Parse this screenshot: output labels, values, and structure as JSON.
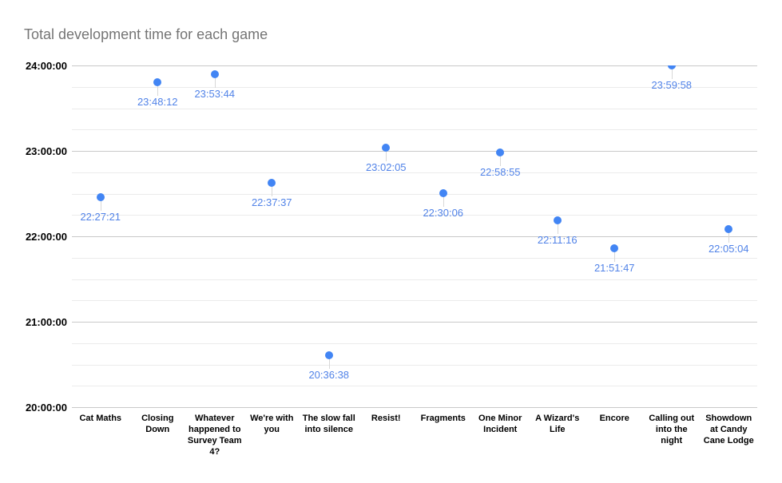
{
  "chart_data": {
    "type": "scatter",
    "title": "Total development time for each game",
    "categories": [
      "Cat Maths",
      "Closing Down",
      "Whatever happened to Survey Team 4?",
      "We're with you",
      "The slow fall into silence",
      "Resist!",
      "Fragments",
      "One Minor Incident",
      "A Wizard's Life",
      "Encore",
      "Calling out into the night",
      "Showdown at Candy Cane Lodge"
    ],
    "values": [
      "22:27:21",
      "23:48:12",
      "23:53:44",
      "22:37:37",
      "20:36:38",
      "23:02:05",
      "22:30:06",
      "22:58:55",
      "22:11:16",
      "21:51:47",
      "23:59:58",
      "22:05:04"
    ],
    "data_labels_visible": true,
    "xlabel": "",
    "ylabel": "",
    "ylim": [
      "20:00:00",
      "24:00:00"
    ],
    "y_ticks": [
      "24:00:00",
      "23:00:00",
      "22:00:00",
      "21:00:00",
      "20:00:00"
    ],
    "minor_gridlines_per_hour": 4,
    "grid": "on",
    "legend": "none",
    "colors": {
      "point": "#4285f4",
      "data_label": "#5183e8",
      "title": "#757575",
      "axis_text": "#000000",
      "grid_major": "#c9c9c9",
      "grid_minor": "#ebebeb",
      "stem": "#d8d8d8",
      "background": "#ffffff"
    }
  }
}
